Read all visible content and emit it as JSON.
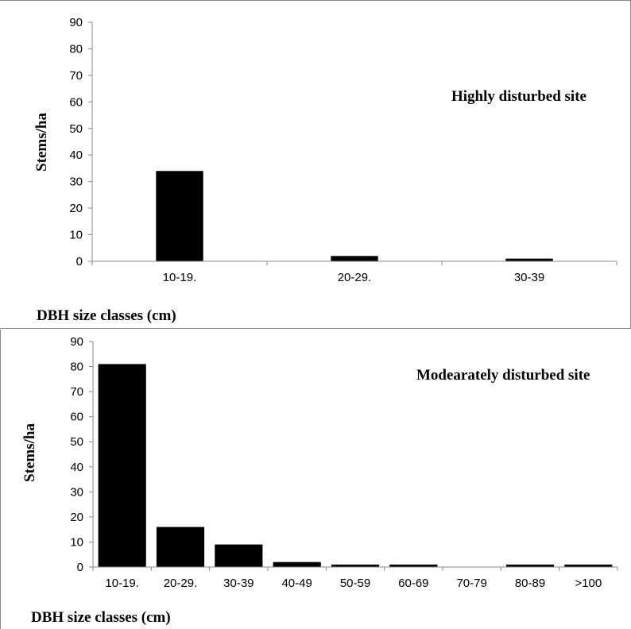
{
  "chart_data": [
    {
      "type": "bar",
      "annotation": "Highly disturbed site",
      "xlabel": "DBH size classes (cm)",
      "ylabel": "Stems/ha",
      "ylim": [
        0,
        90
      ],
      "yticks": [
        0,
        10,
        20,
        30,
        40,
        50,
        60,
        70,
        80,
        90
      ],
      "categories": [
        "10-19.",
        "20-29.",
        "30-39"
      ],
      "values": [
        34,
        2,
        1
      ],
      "bar_color": "#000000",
      "grid": false
    },
    {
      "type": "bar",
      "annotation": "Modearately disturbed site",
      "xlabel": "DBH size classes (cm)",
      "ylabel": "Stems/ha",
      "ylim": [
        0,
        90
      ],
      "yticks": [
        0,
        10,
        20,
        30,
        40,
        50,
        60,
        70,
        80,
        90
      ],
      "categories": [
        "10-19.",
        "20-29.",
        "30-39",
        "40-49",
        "50-59",
        "60-69",
        "70-79",
        "80-89",
        ">100"
      ],
      "values": [
        81,
        16,
        9,
        2,
        1,
        1,
        0,
        1,
        1
      ],
      "bar_color": "#000000",
      "grid": false
    }
  ]
}
